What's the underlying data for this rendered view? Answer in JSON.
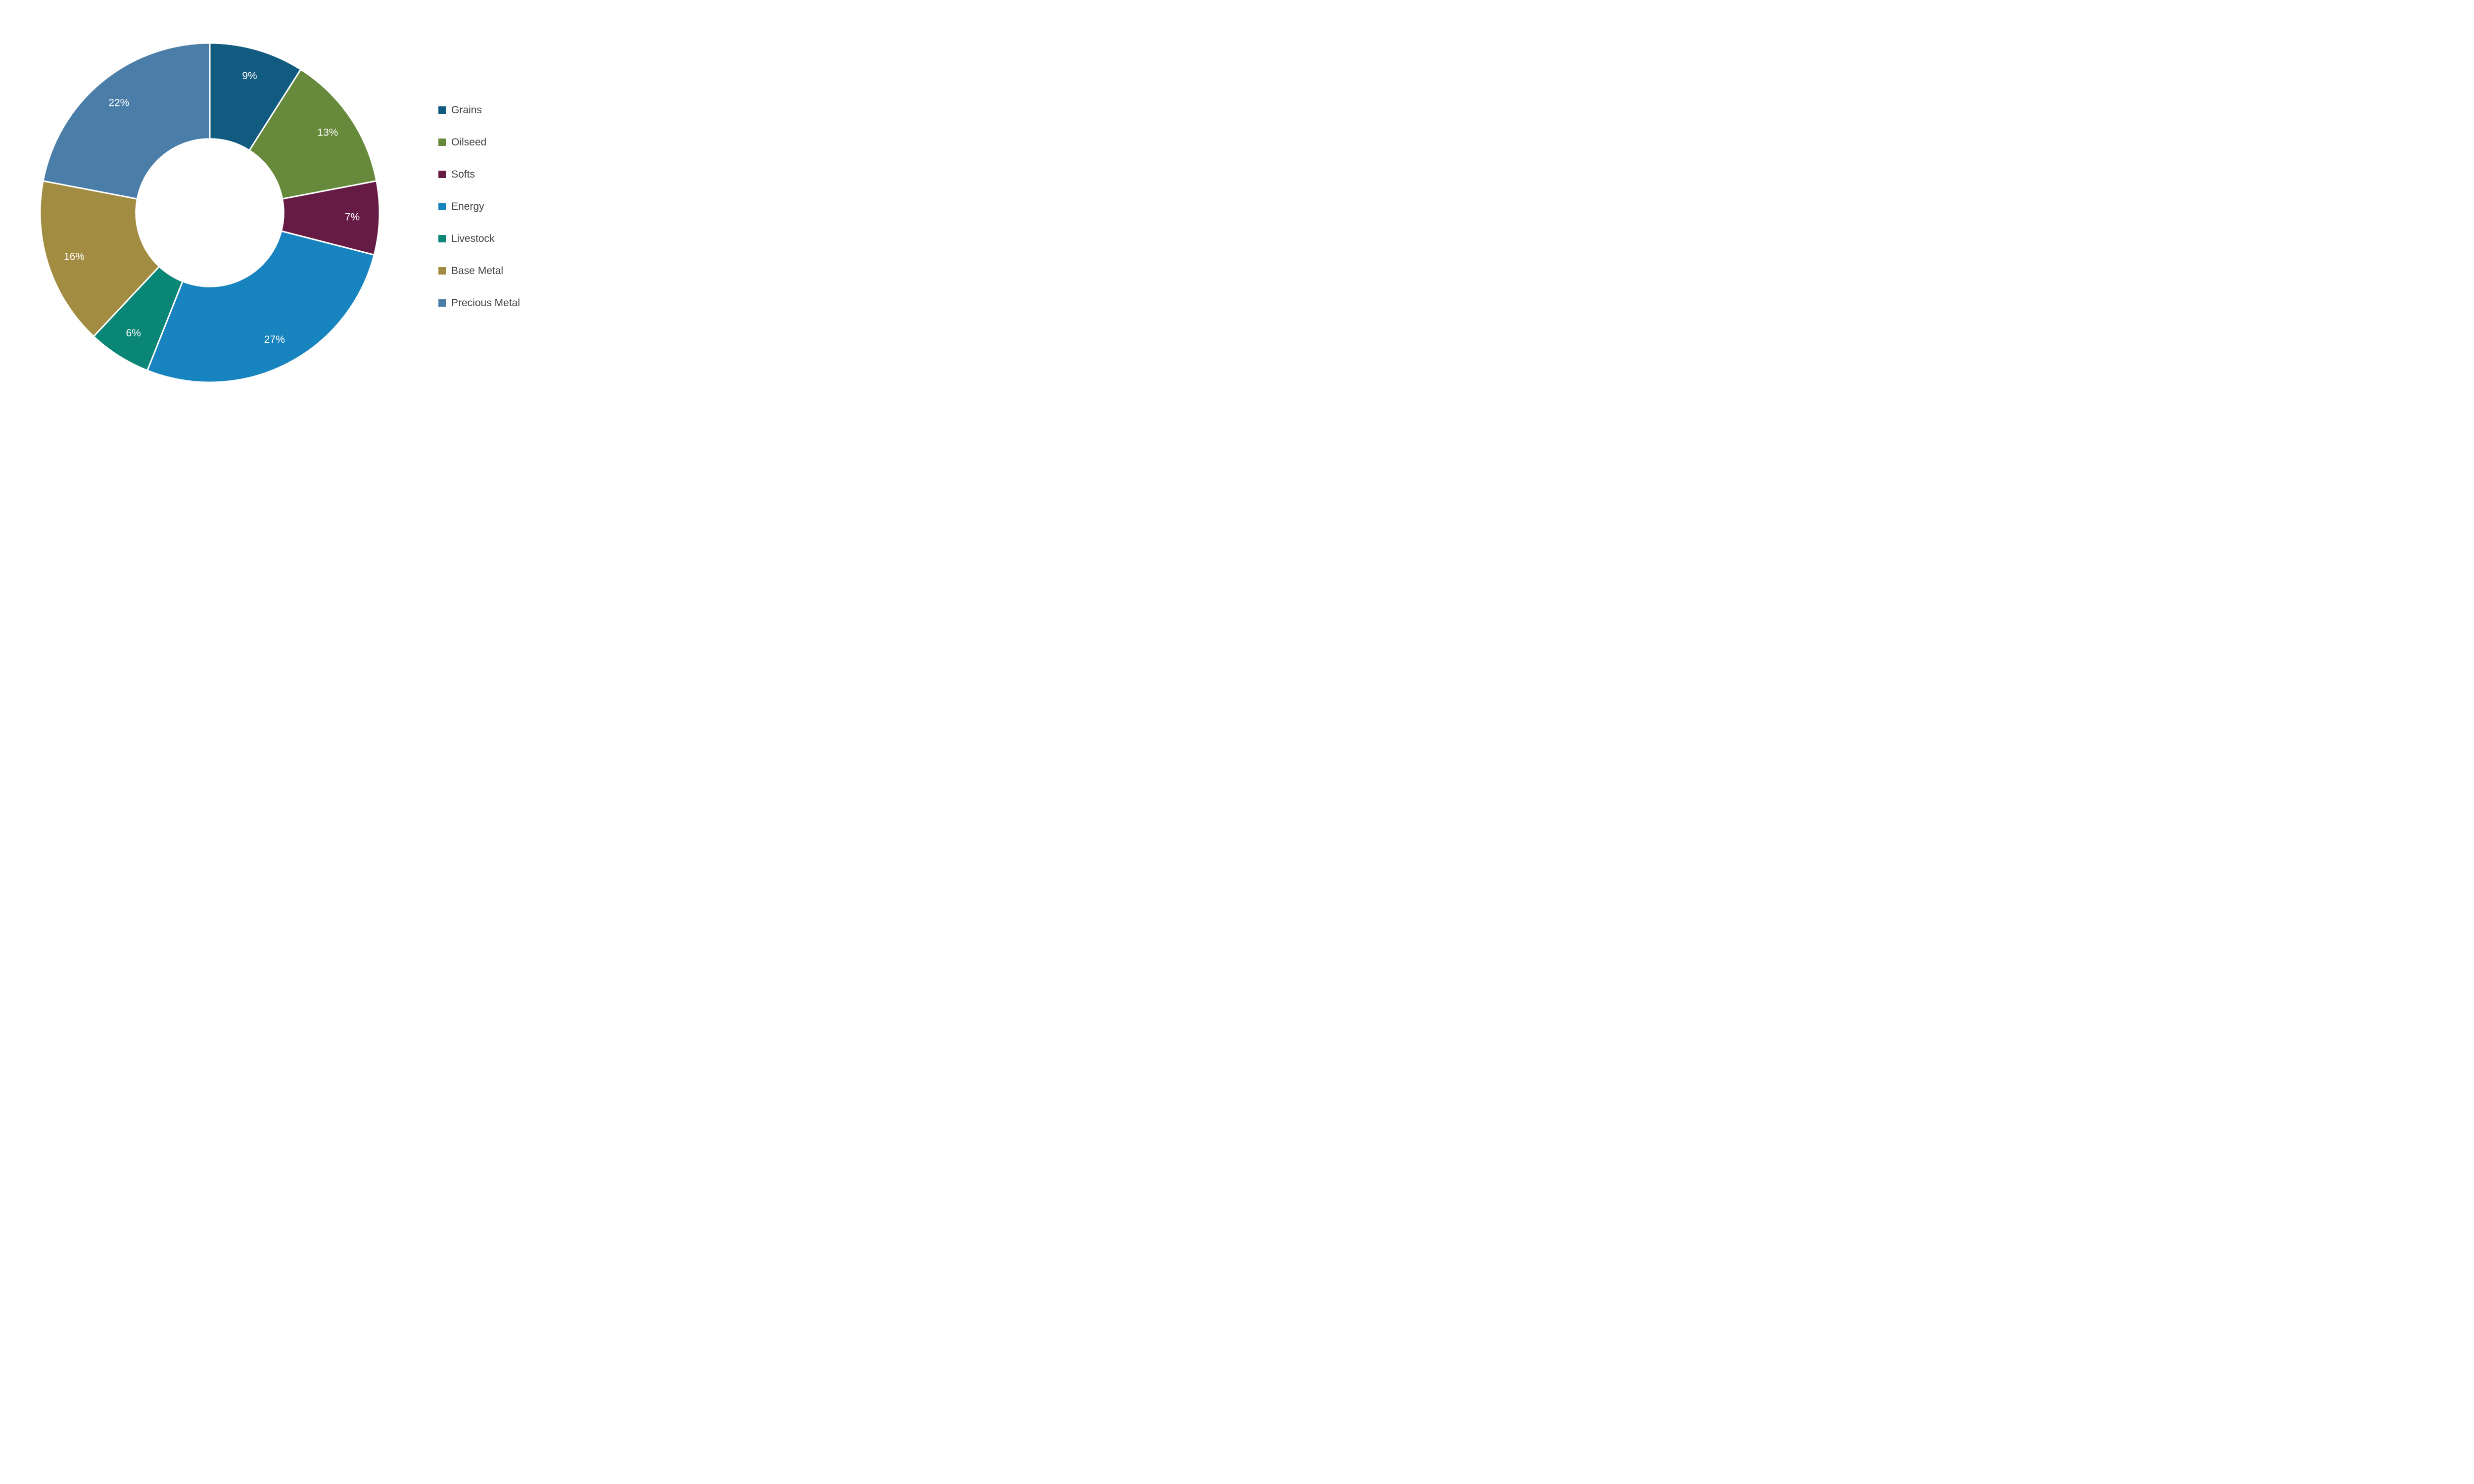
{
  "page": {
    "background": "#ffffff"
  },
  "chart_data": {
    "type": "pie",
    "donut": true,
    "title": "",
    "categories": [
      "Grains",
      "Oilseed",
      "Softs",
      "Energy",
      "Livestock",
      "Base Metal",
      "Precious Metal"
    ],
    "values": [
      9,
      13,
      7,
      27,
      6,
      16,
      22
    ],
    "percent_labels": [
      "9%",
      "13%",
      "7%",
      "27%",
      "6%",
      "16%",
      "22%"
    ],
    "colors": [
      "#115a80",
      "#66893b",
      "#661b45",
      "#1784c0",
      "#0a8677",
      "#a28c41",
      "#4a7ea8"
    ],
    "start_angle_deg": 0,
    "direction": "clockwise",
    "inner_radius_ratio": 0.435,
    "label_radius_ratio": 0.84,
    "label_color": "#ffffff",
    "slice_gap_color": "#ffffff",
    "legend_position": "right",
    "legend_text_color": "#3e4348",
    "legend_entries": [
      "Grains",
      "Oilseed",
      "Softs",
      "Energy",
      "Livestock",
      "Base Metal",
      "Precious Metal"
    ]
  }
}
